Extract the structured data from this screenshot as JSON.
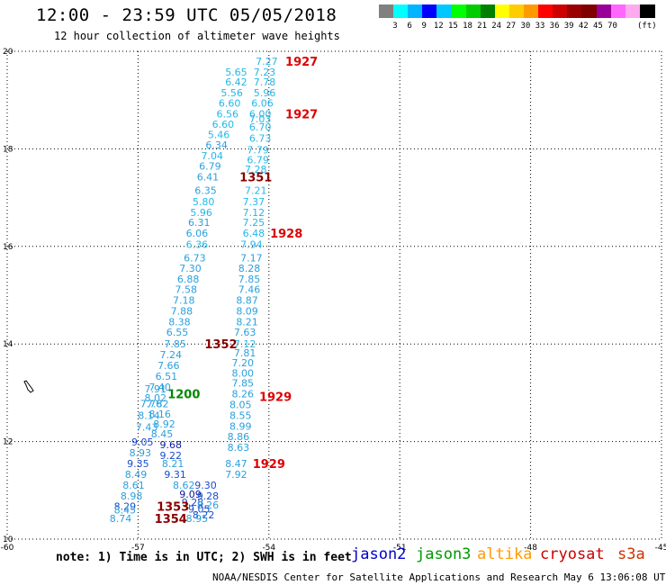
{
  "title": "12:00 - 23:59 UTC 05/05/2018",
  "subtitle": "12 hour collection of altimeter wave heights",
  "legend": {
    "unit": "(ft)",
    "colors": [
      "#808080",
      "#00ffff",
      "#00b4ff",
      "#0000ff",
      "#00c8ff",
      "#00ff00",
      "#00cc00",
      "#008000",
      "#ffff00",
      "#ffcc00",
      "#ff9900",
      "#ff0000",
      "#cc0000",
      "#990000",
      "#800000",
      "#990099",
      "#ff66ff",
      "#ffaaee",
      "#000000"
    ],
    "labels": [
      "3",
      "6",
      "9",
      "12",
      "15",
      "18",
      "21",
      "24",
      "27",
      "30",
      "33",
      "36",
      "39",
      "42",
      "45",
      "70"
    ]
  },
  "axes": {
    "lon_ticks": [
      "-60",
      "-57",
      "-54",
      "-51",
      "-48",
      "-45"
    ],
    "lat_ticks": [
      "10",
      "12",
      "14",
      "16",
      "18",
      "20"
    ],
    "lon_range": [
      -60,
      -45
    ],
    "lat_range": [
      10,
      20
    ]
  },
  "note": "note: 1) Time is in UTC; 2) SWH is in feet",
  "satellites": [
    {
      "name": "jason2",
      "color": "#0000cc"
    },
    {
      "name": "jason3",
      "color": "#009900"
    },
    {
      "name": "altika",
      "color": "#ff9900"
    },
    {
      "name": "cryosat",
      "color": "#cc0000"
    },
    {
      "name": "s3a",
      "color": "#cc3300"
    }
  ],
  "credit": "NOAA/NESDIS Center for Satellite Applications and Research   May  6 13:06:08 UTC 2018",
  "colors": {
    "light": "#22b8e8",
    "mid": "#2aa0dd",
    "dark": "#1a4ccc",
    "navy": "#0a1a99",
    "time_red": "#dd0000",
    "time_maroon": "#880000",
    "time_green": "#008800"
  },
  "map": {
    "obs": [
      {
        "t": "7.27",
        "x": -54.05,
        "y": 19.8,
        "c": "light"
      },
      {
        "t": "5.65",
        "x": -54.75,
        "y": 19.58,
        "c": "light"
      },
      {
        "t": "7.23",
        "x": -54.1,
        "y": 19.58,
        "c": "light"
      },
      {
        "t": "6.42",
        "x": -54.75,
        "y": 19.37,
        "c": "light"
      },
      {
        "t": "7.78",
        "x": -54.1,
        "y": 19.37,
        "c": "light"
      },
      {
        "t": "5.56",
        "x": -54.85,
        "y": 19.15,
        "c": "light"
      },
      {
        "t": "5.96",
        "x": -54.1,
        "y": 19.15,
        "c": "light"
      },
      {
        "t": "6.60",
        "x": -54.9,
        "y": 18.94,
        "c": "light"
      },
      {
        "t": "6.06",
        "x": -54.15,
        "y": 18.94,
        "c": "light"
      },
      {
        "t": "6.56",
        "x": -54.95,
        "y": 18.72,
        "c": "light"
      },
      {
        "t": "6.00",
        "x": -54.2,
        "y": 18.72,
        "c": "light"
      },
      {
        "t": "7.03",
        "x": -54.2,
        "y": 18.62,
        "c": "light"
      },
      {
        "t": "6.60",
        "x": -55.05,
        "y": 18.51,
        "c": "light"
      },
      {
        "t": "6.70",
        "x": -54.2,
        "y": 18.45,
        "c": "light"
      },
      {
        "t": "5.46",
        "x": -55.15,
        "y": 18.29,
        "c": "light"
      },
      {
        "t": "6.73",
        "x": -54.2,
        "y": 18.22,
        "c": "light"
      },
      {
        "t": "6.34",
        "x": -55.2,
        "y": 18.08,
        "c": "mid"
      },
      {
        "t": "7.79",
        "x": -54.25,
        "y": 17.98,
        "c": "light"
      },
      {
        "t": "7.04",
        "x": -55.3,
        "y": 17.86,
        "c": "light"
      },
      {
        "t": "6.79",
        "x": -54.25,
        "y": 17.78,
        "c": "light"
      },
      {
        "t": "6.79",
        "x": -55.35,
        "y": 17.65,
        "c": "mid"
      },
      {
        "t": "7.28",
        "x": -54.3,
        "y": 17.58,
        "c": "light"
      },
      {
        "t": "6.41",
        "x": -55.4,
        "y": 17.43,
        "c": "mid"
      },
      {
        "t": "6.35",
        "x": -55.45,
        "y": 17.15,
        "c": "mid"
      },
      {
        "t": "7.21",
        "x": -54.3,
        "y": 17.15,
        "c": "light"
      },
      {
        "t": "5.80",
        "x": -55.5,
        "y": 16.92,
        "c": "light"
      },
      {
        "t": "7.37",
        "x": -54.35,
        "y": 16.92,
        "c": "light"
      },
      {
        "t": "5.96",
        "x": -55.55,
        "y": 16.7,
        "c": "light"
      },
      {
        "t": "7.12",
        "x": -54.35,
        "y": 16.7,
        "c": "light"
      },
      {
        "t": "6.31",
        "x": -55.6,
        "y": 16.49,
        "c": "mid"
      },
      {
        "t": "7.25",
        "x": -54.35,
        "y": 16.49,
        "c": "light"
      },
      {
        "t": "6.06",
        "x": -55.65,
        "y": 16.27,
        "c": "mid"
      },
      {
        "t": "6.48",
        "x": -54.35,
        "y": 16.27,
        "c": "light"
      },
      {
        "t": "6.36",
        "x": -55.65,
        "y": 16.04,
        "c": "light"
      },
      {
        "t": "7.94",
        "x": -54.4,
        "y": 16.04,
        "c": "light"
      },
      {
        "t": "6.73",
        "x": -55.7,
        "y": 15.77,
        "c": "mid"
      },
      {
        "t": "7.17",
        "x": -54.4,
        "y": 15.77,
        "c": "mid"
      },
      {
        "t": "7.30",
        "x": -55.8,
        "y": 15.55,
        "c": "mid"
      },
      {
        "t": "8.28",
        "x": -54.45,
        "y": 15.55,
        "c": "mid"
      },
      {
        "t": "6.88",
        "x": -55.85,
        "y": 15.33,
        "c": "mid"
      },
      {
        "t": "7.85",
        "x": -54.45,
        "y": 15.33,
        "c": "mid"
      },
      {
        "t": "7.58",
        "x": -55.9,
        "y": 15.12,
        "c": "mid"
      },
      {
        "t": "7.46",
        "x": -54.45,
        "y": 15.12,
        "c": "mid"
      },
      {
        "t": "7.18",
        "x": -55.95,
        "y": 14.9,
        "c": "mid"
      },
      {
        "t": "8.87",
        "x": -54.5,
        "y": 14.9,
        "c": "mid"
      },
      {
        "t": "7.88",
        "x": -56.0,
        "y": 14.68,
        "c": "mid"
      },
      {
        "t": "8.09",
        "x": -54.5,
        "y": 14.68,
        "c": "mid"
      },
      {
        "t": "8.38",
        "x": -56.05,
        "y": 14.46,
        "c": "mid"
      },
      {
        "t": "8.21",
        "x": -54.5,
        "y": 14.46,
        "c": "mid"
      },
      {
        "t": "6.55",
        "x": -56.1,
        "y": 14.24,
        "c": "mid"
      },
      {
        "t": "7.63",
        "x": -54.55,
        "y": 14.24,
        "c": "mid"
      },
      {
        "t": "7.85",
        "x": -56.15,
        "y": 14.0,
        "c": "mid"
      },
      {
        "t": "7.12",
        "x": -54.55,
        "y": 14.0,
        "c": "light"
      },
      {
        "t": "7.81",
        "x": -54.55,
        "y": 13.82,
        "c": "mid"
      },
      {
        "t": "7.24",
        "x": -56.25,
        "y": 13.78,
        "c": "mid"
      },
      {
        "t": "7.20",
        "x": -54.6,
        "y": 13.62,
        "c": "mid"
      },
      {
        "t": "7.66",
        "x": -56.3,
        "y": 13.56,
        "c": "mid"
      },
      {
        "t": "8.00",
        "x": -54.6,
        "y": 13.4,
        "c": "mid"
      },
      {
        "t": "6.51",
        "x": -56.35,
        "y": 13.34,
        "c": "mid"
      },
      {
        "t": "7.85",
        "x": -54.6,
        "y": 13.2,
        "c": "mid"
      },
      {
        "t": "7.40",
        "x": -56.5,
        "y": 13.12,
        "c": "mid"
      },
      {
        "t": "7.91",
        "x": -56.6,
        "y": 13.08,
        "c": "mid"
      },
      {
        "t": "8.02",
        "x": -56.6,
        "y": 12.9,
        "c": "mid"
      },
      {
        "t": "8.26",
        "x": -54.6,
        "y": 12.98,
        "c": "mid"
      },
      {
        "t": "7.82",
        "x": -56.55,
        "y": 12.78,
        "c": "mid"
      },
      {
        "t": "7.76",
        "x": -56.7,
        "y": 12.78,
        "c": "mid"
      },
      {
        "t": "8.05",
        "x": -54.65,
        "y": 12.76,
        "c": "mid"
      },
      {
        "t": "8.16",
        "x": -56.5,
        "y": 12.56,
        "c": "mid"
      },
      {
        "t": "8.14",
        "x": -56.75,
        "y": 12.54,
        "c": "mid"
      },
      {
        "t": "8.55",
        "x": -54.65,
        "y": 12.54,
        "c": "mid"
      },
      {
        "t": "8.92",
        "x": -56.4,
        "y": 12.36,
        "c": "mid"
      },
      {
        "t": "7.43",
        "x": -56.8,
        "y": 12.3,
        "c": "mid"
      },
      {
        "t": "8.99",
        "x": -54.65,
        "y": 12.32,
        "c": "mid"
      },
      {
        "t": "8.45",
        "x": -56.45,
        "y": 12.16,
        "c": "mid"
      },
      {
        "t": "8.86",
        "x": -54.7,
        "y": 12.1,
        "c": "mid"
      },
      {
        "t": "9.05",
        "x": -56.9,
        "y": 11.99,
        "c": "dark"
      },
      {
        "t": "9.68",
        "x": -56.25,
        "y": 11.94,
        "c": "navy"
      },
      {
        "t": "8.63",
        "x": -54.7,
        "y": 11.88,
        "c": "mid"
      },
      {
        "t": "8.93",
        "x": -56.95,
        "y": 11.77,
        "c": "mid"
      },
      {
        "t": "9.22",
        "x": -56.25,
        "y": 11.72,
        "c": "dark"
      },
      {
        "t": "9.35",
        "x": -57.0,
        "y": 11.55,
        "c": "dark"
      },
      {
        "t": "8.21",
        "x": -56.2,
        "y": 11.55,
        "c": "mid"
      },
      {
        "t": "8.47",
        "x": -54.75,
        "y": 11.55,
        "c": "mid"
      },
      {
        "t": "8.49",
        "x": -57.05,
        "y": 11.33,
        "c": "mid"
      },
      {
        "t": "9.31",
        "x": -56.15,
        "y": 11.33,
        "c": "dark"
      },
      {
        "t": "7.92",
        "x": -54.75,
        "y": 11.33,
        "c": "mid"
      },
      {
        "t": "8.61",
        "x": -57.1,
        "y": 11.11,
        "c": "mid"
      },
      {
        "t": "8.62",
        "x": -55.95,
        "y": 11.11,
        "c": "mid"
      },
      {
        "t": "9.30",
        "x": -55.45,
        "y": 11.11,
        "c": "dark"
      },
      {
        "t": "8.98",
        "x": -57.15,
        "y": 10.89,
        "c": "mid"
      },
      {
        "t": "9.09",
        "x": -55.8,
        "y": 10.92,
        "c": "navy"
      },
      {
        "t": "9.28",
        "x": -55.4,
        "y": 10.89,
        "c": "dark"
      },
      {
        "t": "9.28",
        "x": -55.75,
        "y": 10.76,
        "c": "dark"
      },
      {
        "t": "8.26",
        "x": -55.4,
        "y": 10.7,
        "c": "mid"
      },
      {
        "t": "8.29",
        "x": -57.3,
        "y": 10.67,
        "c": "dark"
      },
      {
        "t": "9.05",
        "x": -55.6,
        "y": 10.62,
        "c": "dark"
      },
      {
        "t": "8.45",
        "x": -57.3,
        "y": 10.6,
        "c": "mid"
      },
      {
        "t": "8.22",
        "x": -55.5,
        "y": 10.5,
        "c": "dark"
      },
      {
        "t": "8.74",
        "x": -57.4,
        "y": 10.42,
        "c": "mid"
      },
      {
        "t": "8.95",
        "x": -55.65,
        "y": 10.42,
        "c": "mid"
      }
    ],
    "times": [
      {
        "t": "1927",
        "x": -53.25,
        "y": 19.8,
        "c": "time_red"
      },
      {
        "t": "1927",
        "x": -53.25,
        "y": 18.72,
        "c": "time_red"
      },
      {
        "t": "1351",
        "x": -54.3,
        "y": 17.43,
        "c": "time_maroon"
      },
      {
        "t": "1928",
        "x": -53.6,
        "y": 16.27,
        "c": "time_red"
      },
      {
        "t": "1352",
        "x": -55.1,
        "y": 14.0,
        "c": "time_maroon"
      },
      {
        "t": "1200",
        "x": -55.95,
        "y": 12.98,
        "c": "time_green"
      },
      {
        "t": "1929",
        "x": -53.85,
        "y": 12.92,
        "c": "time_red"
      },
      {
        "t": "1929",
        "x": -54.0,
        "y": 11.55,
        "c": "time_red"
      },
      {
        "t": "1353",
        "x": -56.2,
        "y": 10.67,
        "c": "time_maroon"
      },
      {
        "t": "1354",
        "x": -56.25,
        "y": 10.42,
        "c": "time_maroon"
      }
    ]
  }
}
